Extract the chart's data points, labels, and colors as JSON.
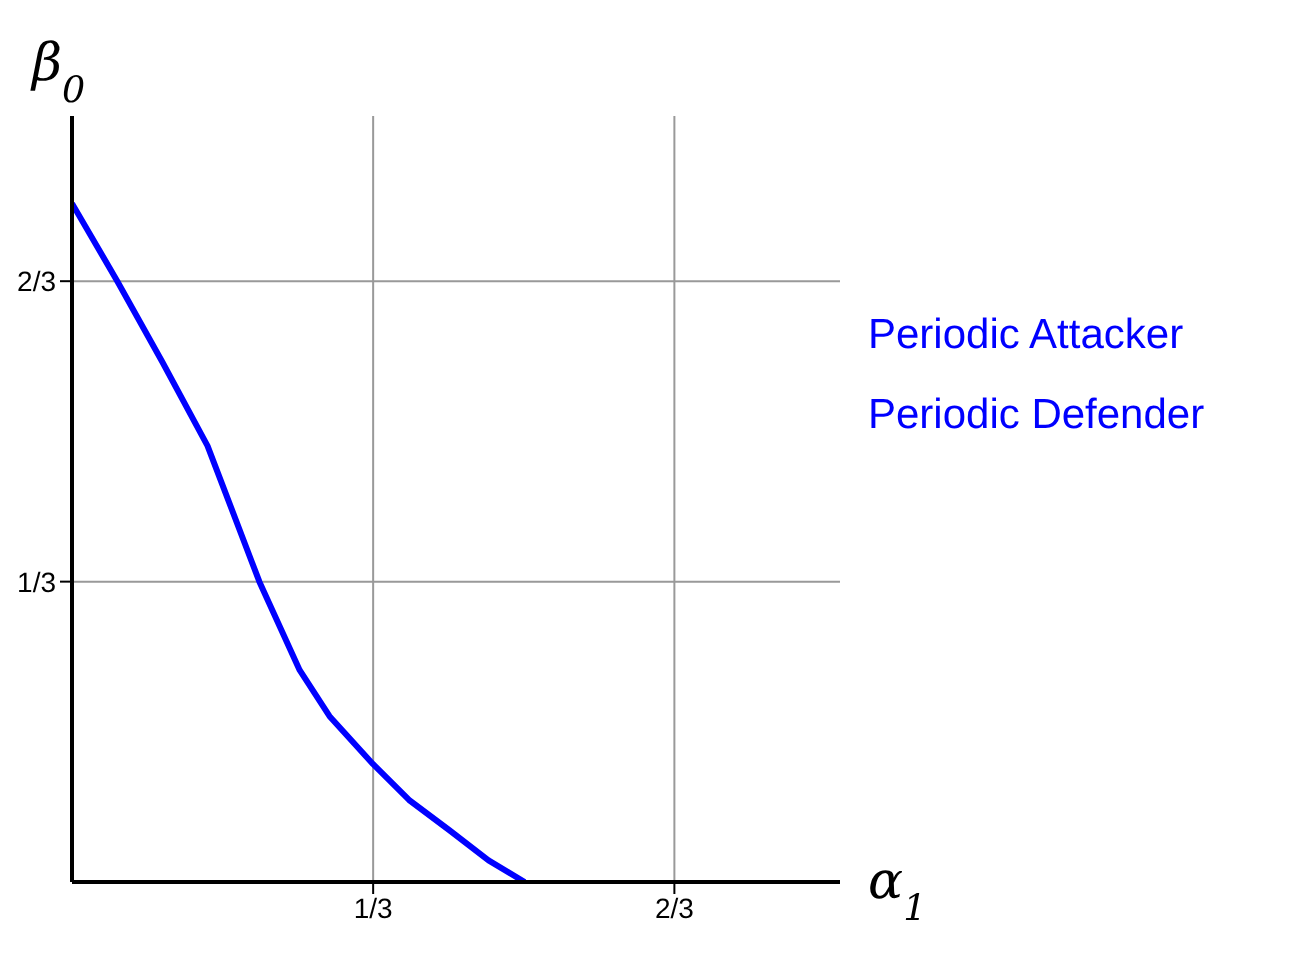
{
  "chart_data": {
    "type": "line",
    "xlabel": "α$_{1}$",
    "ylabel": "β$_{0}$",
    "x": [
      0,
      0.05,
      0.1,
      0.15,
      0.2075,
      0.252,
      0.285,
      0.333,
      0.373,
      0.417,
      0.461,
      0.501
    ],
    "series": [
      {
        "color": "#0000ff",
        "values": [
          0.753,
          0.667,
          0.577,
          0.484,
          0.333,
          0.235,
          0.184,
          0.131,
          0.091,
          0.058,
          0.024,
          0
        ]
      }
    ],
    "annotations": [
      "Periodic Attacker",
      "Periodic Defender"
    ],
    "xlim": [
      0,
      0.85
    ],
    "ylim": [
      0,
      0.85
    ],
    "xticks": [
      {
        "value": 0.3333,
        "label": "1/3"
      },
      {
        "value": 0.6667,
        "label": "2/3"
      }
    ],
    "yticks": [
      {
        "value": 0.3333,
        "label": "1/3"
      },
      {
        "value": 0.6667,
        "label": "2/3"
      }
    ],
    "grid": true,
    "marker": "none",
    "line_style": "solid"
  }
}
